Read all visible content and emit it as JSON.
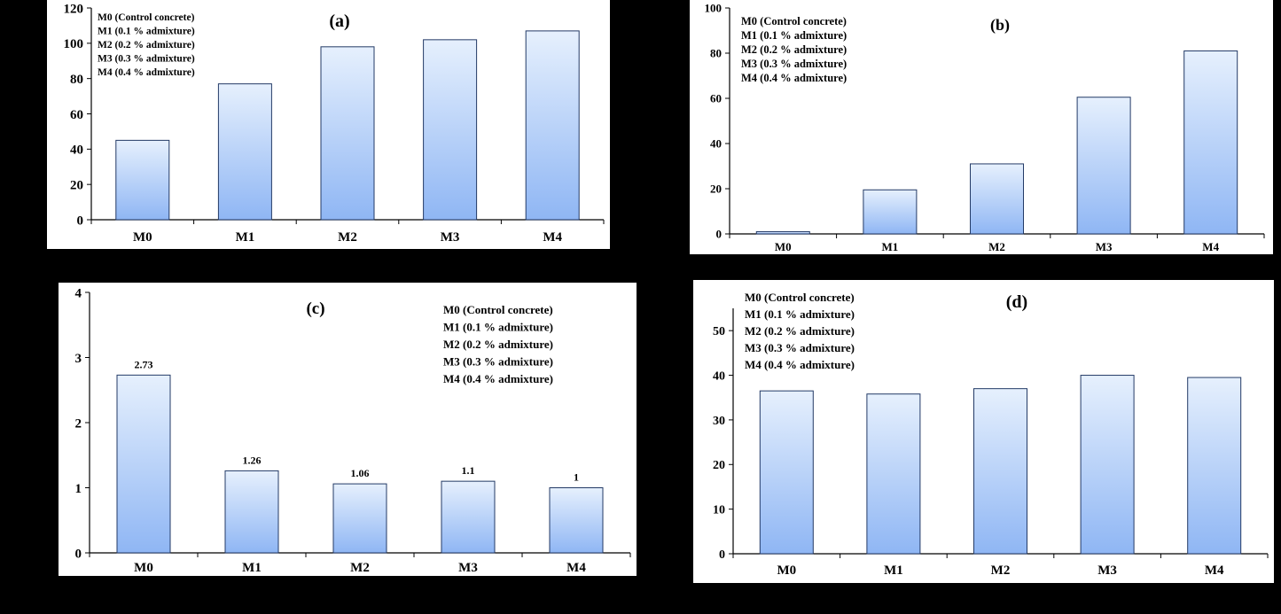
{
  "chart_data": [
    {
      "type": "bar",
      "panel_label": "(a)",
      "categories": [
        "M0",
        "M1",
        "M2",
        "M3",
        "M4"
      ],
      "values": [
        45,
        77,
        98,
        102,
        107
      ],
      "ylim": [
        0,
        120
      ],
      "yticks": [
        0,
        20,
        40,
        60,
        80,
        100,
        120
      ],
      "legend": [
        "M0 (Control concrete)",
        "M1 (0.1 % admixture)",
        "M2 (0.2 % admixture)",
        "M3 (0.3 % admixture)",
        "M4 (0.4 % admixture)"
      ],
      "legend_position": "top-left",
      "data_labels": [],
      "grid": false
    },
    {
      "type": "bar",
      "panel_label": "(b)",
      "categories": [
        "M0",
        "M1",
        "M2",
        "M3",
        "M4"
      ],
      "values": [
        1,
        19.5,
        31,
        60.5,
        81
      ],
      "ylim": [
        0,
        100
      ],
      "yticks": [
        0,
        20,
        40,
        60,
        80,
        100
      ],
      "legend": [
        "M0 (Control concrete)",
        "M1 (0.1 % admixture)",
        "M2 (0.2 % admixture)",
        "M3 (0.3 % admixture)",
        "M4 (0.4 % admixture)"
      ],
      "legend_position": "top-left",
      "data_labels": [],
      "grid": false
    },
    {
      "type": "bar",
      "panel_label": "(c)",
      "categories": [
        "M0",
        "M1",
        "M2",
        "M3",
        "M4"
      ],
      "values": [
        2.73,
        1.26,
        1.06,
        1.1,
        1
      ],
      "ylim": [
        0,
        4
      ],
      "yticks": [
        0,
        1,
        2,
        3,
        4
      ],
      "legend": [
        "M0 (Control concrete)",
        "M1 (0.1 % admixture)",
        "M2 (0.2 % admixture)",
        "M3 (0.3 % admixture)",
        "M4 (0.4 % admixture)"
      ],
      "legend_position": "top-right",
      "data_labels": [
        "2.73",
        "1.26",
        "1.06",
        "1.1",
        "1"
      ],
      "grid": false
    },
    {
      "type": "bar",
      "panel_label": "(d)",
      "categories": [
        "M0",
        "M1",
        "M2",
        "M3",
        "M4"
      ],
      "values": [
        36.5,
        35.8,
        37,
        40,
        39.5
      ],
      "ylim": [
        0,
        55
      ],
      "yticks": [
        0,
        10,
        20,
        30,
        40,
        50
      ],
      "legend": [
        "M0 (Control concrete)",
        "M1 (0.1 % admixture)",
        "M2 (0.2 % admixture)",
        "M3 (0.3 % admixture)",
        "M4 (0.4 % admixture)"
      ],
      "legend_position": "top-left",
      "data_labels": [],
      "grid": false
    }
  ],
  "colors": {
    "bar_top": "#e6f0fd",
    "bar_bottom": "#8fb6f4",
    "bar_stroke": "#233a66"
  }
}
